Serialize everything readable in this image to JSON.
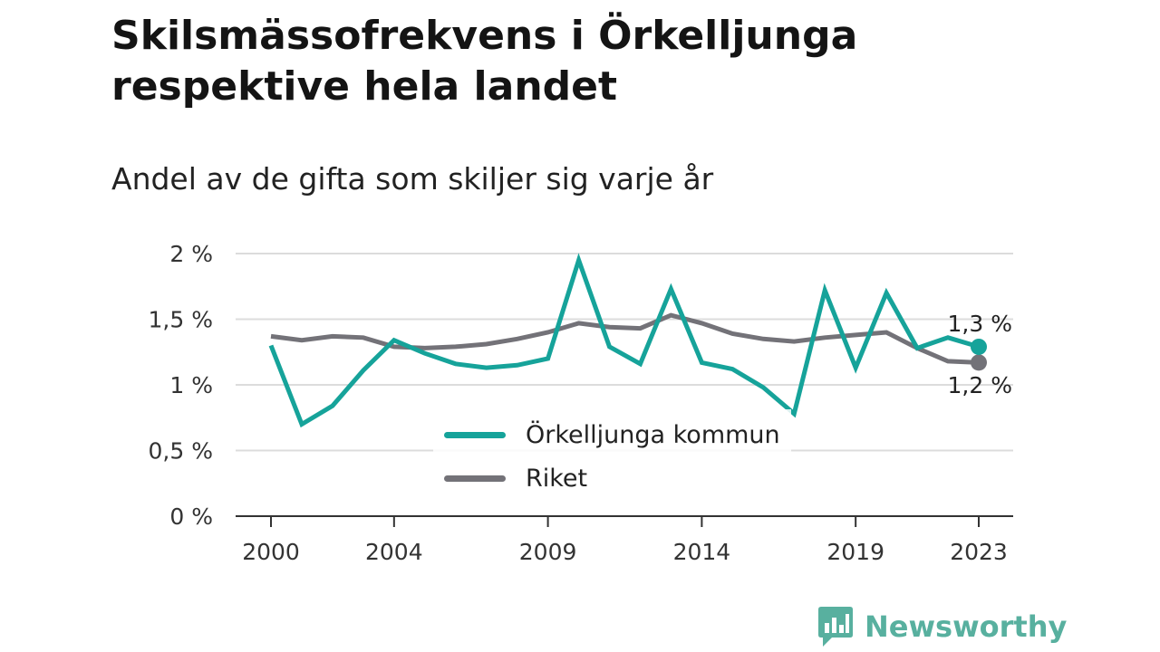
{
  "header": {
    "title": "Skilsmässofrekvens i Örkelljunga respektive hela landet",
    "subtitle": "Andel av de gifta som skiljer sig varje år"
  },
  "legend": {
    "items": [
      {
        "label": "Örkelljunga kommun",
        "color": "#16a39a"
      },
      {
        "label": "Riket",
        "color": "#737278"
      }
    ]
  },
  "end_labels": {
    "orkelljunga": "1,3 %",
    "riket": "1,2 %"
  },
  "logo": {
    "text": "Newsworthy",
    "icon": "newsworthy-chart-bubble-icon"
  },
  "chart_data": {
    "type": "line",
    "title": "Skilsmässofrekvens i Örkelljunga respektive hela landet",
    "subtitle": "Andel av de gifta som skiljer sig varje år",
    "x": [
      2000,
      2001,
      2002,
      2003,
      2004,
      2005,
      2006,
      2007,
      2008,
      2009,
      2010,
      2011,
      2012,
      2013,
      2014,
      2015,
      2016,
      2017,
      2018,
      2019,
      2020,
      2021,
      2022,
      2023
    ],
    "x_ticks": [
      2000,
      2004,
      2009,
      2014,
      2019,
      2023
    ],
    "x_tick_labels": [
      "2000",
      "2004",
      "2009",
      "2014",
      "2019",
      "2023"
    ],
    "y_ticks": [
      0,
      0.5,
      1,
      1.5,
      2
    ],
    "y_tick_labels": [
      "0 %",
      "0,5 %",
      "1 %",
      "1,5 %",
      "2 %"
    ],
    "xlim": [
      2000,
      2023
    ],
    "ylim": [
      0,
      2
    ],
    "grid": "horizontal",
    "legend_position": "center-bottom",
    "series": [
      {
        "name": "Örkelljunga kommun",
        "color": "#16a39a",
        "values": [
          1.3,
          0.7,
          0.84,
          1.11,
          1.34,
          1.24,
          1.16,
          1.13,
          1.15,
          1.2,
          1.95,
          1.29,
          1.16,
          1.73,
          1.17,
          1.12,
          0.98,
          0.78,
          1.72,
          1.13,
          1.7,
          1.28,
          1.36,
          1.29
        ]
      },
      {
        "name": "Riket",
        "color": "#737278",
        "values": [
          1.37,
          1.34,
          1.37,
          1.36,
          1.29,
          1.28,
          1.29,
          1.31,
          1.35,
          1.4,
          1.47,
          1.44,
          1.43,
          1.53,
          1.47,
          1.39,
          1.35,
          1.33,
          1.36,
          1.38,
          1.4,
          1.28,
          1.18,
          1.17
        ]
      }
    ]
  }
}
